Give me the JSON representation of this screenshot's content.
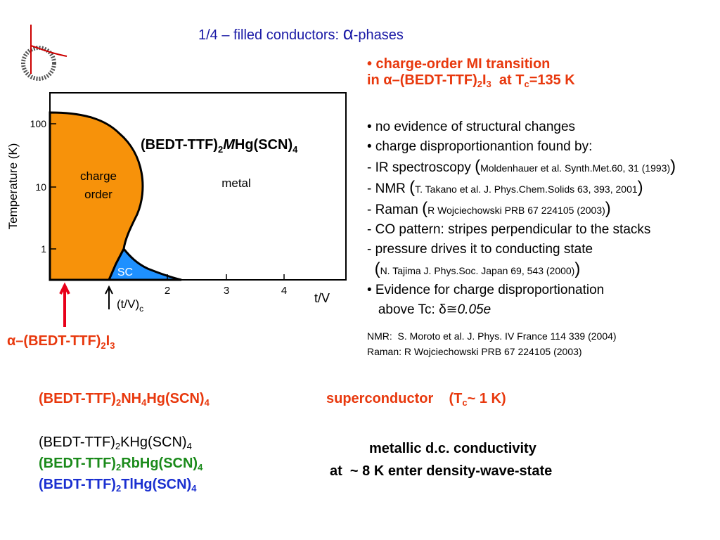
{
  "title": [
    "1/4 – filled conductors: ",
    "α",
    "-phases"
  ],
  "right": {
    "heading1": "• charge-order MI transition",
    "heading2": [
      "in ",
      "α–",
      "(BEDT-TTF)",
      "2",
      "I",
      "3",
      "  at T",
      "c",
      "=135 K"
    ],
    "b1": "• no evidence of structural changes",
    "b2": "• charge disproportionantion found by:",
    "ir": [
      "- ",
      "IR spectroscopy ",
      "(",
      "Moldenhauer et al. Synth.Met.60, 31 (1993)",
      ")"
    ],
    "nmr": [
      "- NMR ",
      "(",
      "T. Takano et al. J. Phys.Chem.Solids 63, 393, 2001",
      ")"
    ],
    "raman": [
      "- Raman ",
      "(",
      "R Wojciechowski PRB 67 224105 (2003)",
      ")"
    ],
    "co": "- CO pattern: stripes perpendicular to the stacks",
    "pressure": "- pressure drives it to conducting state",
    "tajima": [
      "(",
      "N. Tajima J. Phys.Soc. Japan 69, 543 (2000)",
      ")"
    ],
    "b3": "• Evidence for charge disproportionation",
    "above": [
      "above Tc: ",
      "δ≅",
      "0.05e"
    ],
    "ref1": "NMR:  S. Moroto et al. J. Phys. IV France 114 339 (2004)",
    "ref2": "Raman: R Wojciechowski PRB 67 224105 (2003)"
  },
  "diagram": {
    "ylabel": "Temperature (K)",
    "yticks": [
      "100",
      "10",
      "1"
    ],
    "xticks": [
      "2",
      "3",
      "4"
    ],
    "xlabel": "t/V",
    "charge_order": [
      "charge",
      "order"
    ],
    "metal": "metal",
    "sc": "SC",
    "compound": [
      "(BEDT-TTF)",
      "2",
      "M",
      "Hg(SCN)",
      "4"
    ],
    "critical": [
      "(t/V)",
      "c"
    ],
    "arrow_label": [
      "α–",
      "(BEDT-TTF)",
      "2",
      "I",
      "3"
    ]
  },
  "bottom": {
    "nh4": [
      "(BEDT-TTF)",
      "2",
      "NH",
      "4",
      "Hg(SCN)",
      "4"
    ],
    "sc": [
      "superconductor    (T",
      "c",
      "~ 1 K)"
    ],
    "k": [
      "(BEDT-TTF)",
      "2",
      "KHg(SCN)",
      "4"
    ],
    "rb": [
      "(BEDT-TTF)",
      "2",
      "RbHg(SCN)",
      "4"
    ],
    "tl": [
      "(BEDT-TTF)",
      "2",
      "TlHg(SCN)",
      "4"
    ],
    "metallic": "metallic d.c. conductivity",
    "dw": "at  ~ 8 K enter density-wave-state"
  }
}
